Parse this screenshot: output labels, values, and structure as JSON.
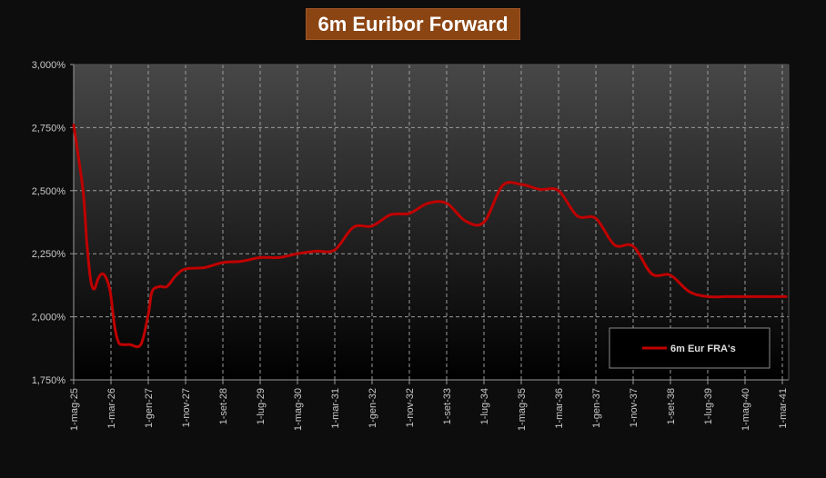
{
  "chart_data": {
    "type": "line",
    "title": "6m Euribor Forward",
    "xlabel": "",
    "ylabel": "",
    "ylim": [
      1.75,
      3.0
    ],
    "y_ticks": [
      "1,750%",
      "2,000%",
      "2,250%",
      "2,500%",
      "2,750%",
      "3,000%"
    ],
    "x_ticks": [
      "1-mag-25",
      "1-mar-26",
      "1-gen-27",
      "1-nov-27",
      "1-set-28",
      "1-lug-29",
      "1-mag-30",
      "1-mar-31",
      "1-gen-32",
      "1-nov-32",
      "1-set-33",
      "1-lug-34",
      "1-mag-35",
      "1-mar-36",
      "1-gen-37",
      "1-nov-37",
      "1-set-38",
      "1-lug-39",
      "1-mag-40",
      "1-mar-41"
    ],
    "grid": true,
    "legend_position": "bottom-right",
    "series": [
      {
        "name": "6m Eur FRA's",
        "color": "#c00000",
        "x": [
          0,
          0.25,
          0.35,
          0.45,
          0.55,
          0.65,
          0.75,
          0.85,
          0.95,
          1.0,
          1.1,
          1.2,
          1.3,
          1.5,
          1.8,
          2.0,
          2.1,
          2.3,
          2.5,
          2.75,
          3.0,
          3.5,
          4.0,
          4.5,
          5.0,
          5.5,
          6.0,
          6.5,
          7.0,
          7.5,
          8.0,
          8.5,
          9.0,
          9.5,
          10.0,
          10.5,
          11.0,
          11.5,
          12.0,
          12.5,
          13.0,
          13.5,
          14.0,
          14.5,
          15.0,
          15.5,
          16.0,
          16.5,
          17.0,
          17.5,
          18.0,
          18.5,
          19.0,
          19.1
        ],
        "y": [
          2.76,
          2.5,
          2.3,
          2.15,
          2.11,
          2.15,
          2.17,
          2.16,
          2.12,
          2.08,
          1.96,
          1.9,
          1.89,
          1.89,
          1.89,
          2.01,
          2.1,
          2.12,
          2.12,
          2.165,
          2.19,
          2.195,
          2.215,
          2.22,
          2.235,
          2.235,
          2.25,
          2.26,
          2.265,
          2.355,
          2.36,
          2.405,
          2.41,
          2.45,
          2.45,
          2.38,
          2.375,
          2.52,
          2.525,
          2.505,
          2.5,
          2.4,
          2.39,
          2.285,
          2.28,
          2.17,
          2.165,
          2.1,
          2.08,
          2.08,
          2.08,
          2.08,
          2.08,
          2.08
        ]
      }
    ]
  }
}
